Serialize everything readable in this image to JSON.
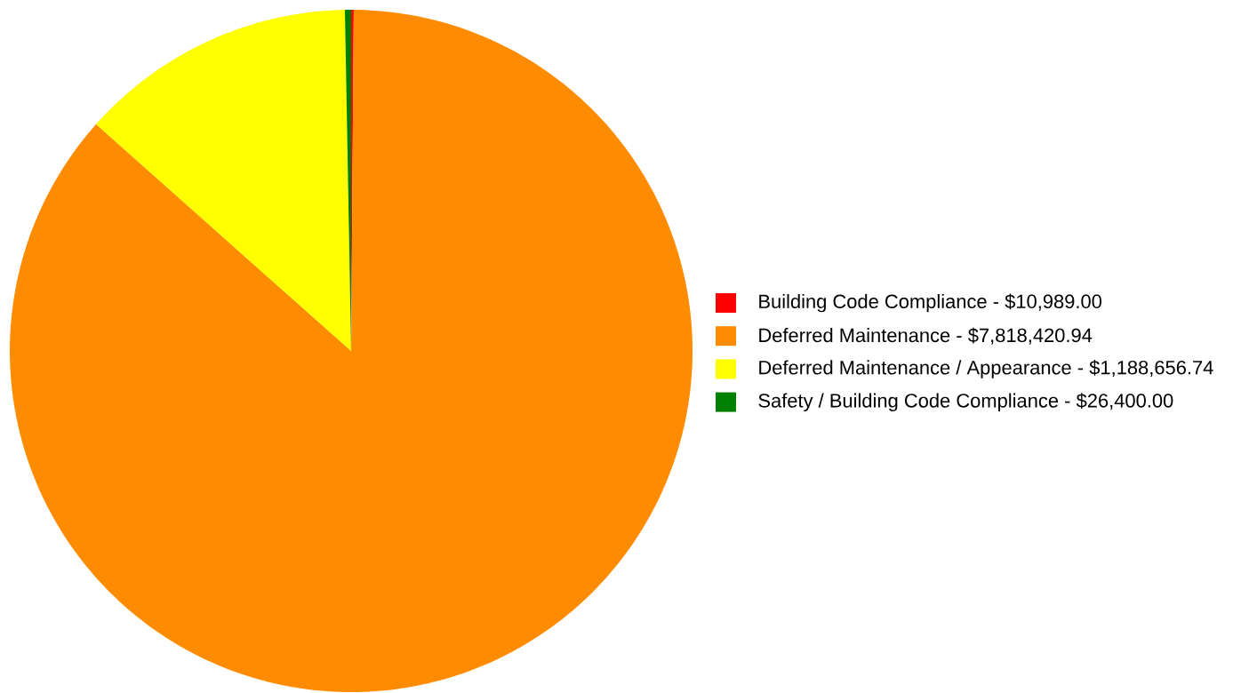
{
  "chart_data": {
    "type": "pie",
    "categories": [
      "Building Code Compliance -",
      "Deferred Maintenance -",
      "Deferred Maintenance / Appearance -",
      "Safety / Building Code Compliance -"
    ],
    "values": [
      10989.0,
      7818420.94,
      1188656.74,
      26400.0
    ],
    "value_labels": [
      "$10,989.00",
      "$7,818,420.94",
      "$1,188,656.74",
      "$26,400.00"
    ],
    "colors": [
      "#ff0000",
      "#ff8c00",
      "#ffff00",
      "#008000"
    ],
    "legend": "right"
  }
}
